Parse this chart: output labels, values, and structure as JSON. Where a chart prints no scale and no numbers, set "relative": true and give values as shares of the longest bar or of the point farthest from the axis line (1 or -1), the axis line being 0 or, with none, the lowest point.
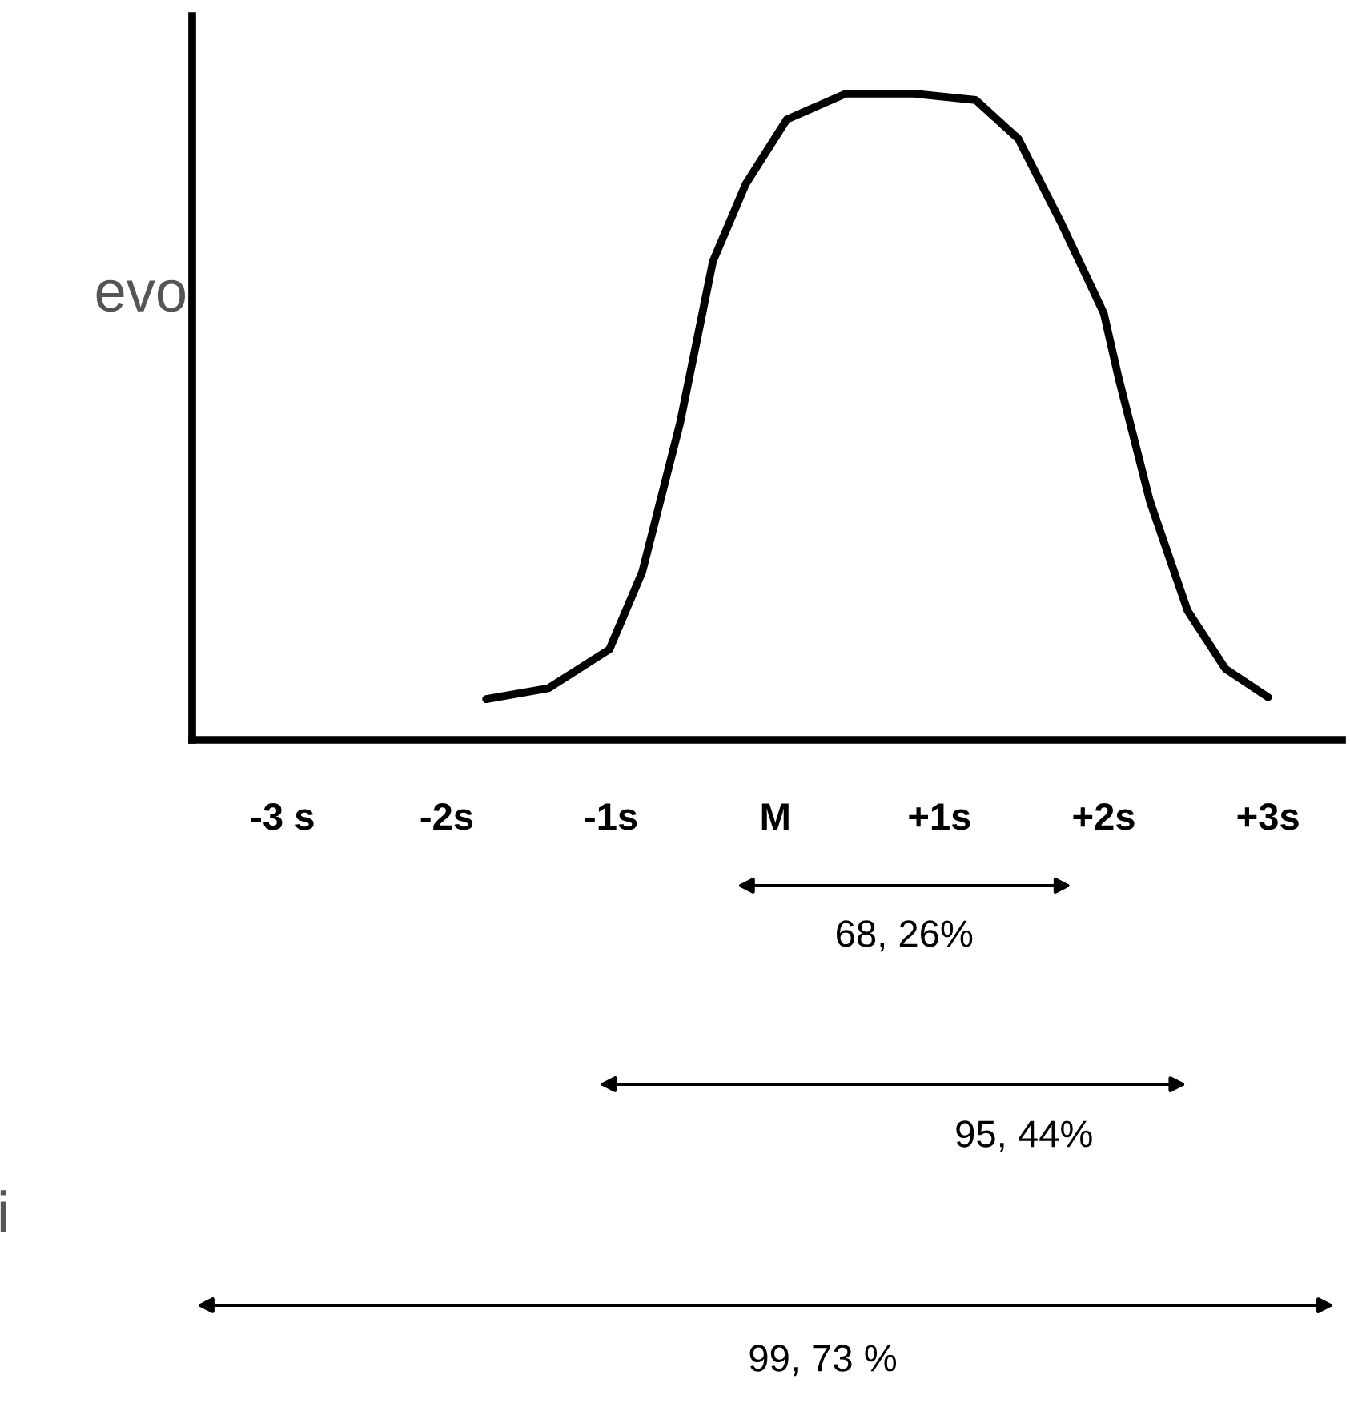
{
  "chart_data": {
    "type": "line",
    "relative": true,
    "color": "#000000",
    "x": [
      -1.76,
      -1.38,
      -1.01,
      -0.81,
      -0.58,
      -0.38,
      -0.18,
      0.07,
      0.43,
      0.84,
      1.22,
      1.48,
      1.74,
      2.0,
      2.09,
      2.28,
      2.51,
      2.74,
      3.0
    ],
    "values": [
      0.063,
      0.08,
      0.14,
      0.26,
      0.49,
      0.74,
      0.86,
      0.96,
      1.0,
      1.0,
      0.99,
      0.93,
      0.8,
      0.66,
      0.56,
      0.37,
      0.2,
      0.11,
      0.066
    ],
    "xlim": [
      -3.55,
      3.45
    ],
    "xticks": [
      {
        "value": -3,
        "label": "-3 s"
      },
      {
        "value": -2,
        "label": "-2s"
      },
      {
        "value": -1,
        "label": "-1s"
      },
      {
        "value": 0,
        "label": "M"
      },
      {
        "value": 1,
        "label": "+1s"
      },
      {
        "value": 2,
        "label": "+2s"
      },
      {
        "value": 3,
        "label": "+3s"
      }
    ],
    "tick_labels": "x",
    "grid": false,
    "legend": false,
    "annotations": [
      "68, 26%",
      "95, 44%",
      "99, 73 %",
      "evo",
      "i"
    ]
  }
}
